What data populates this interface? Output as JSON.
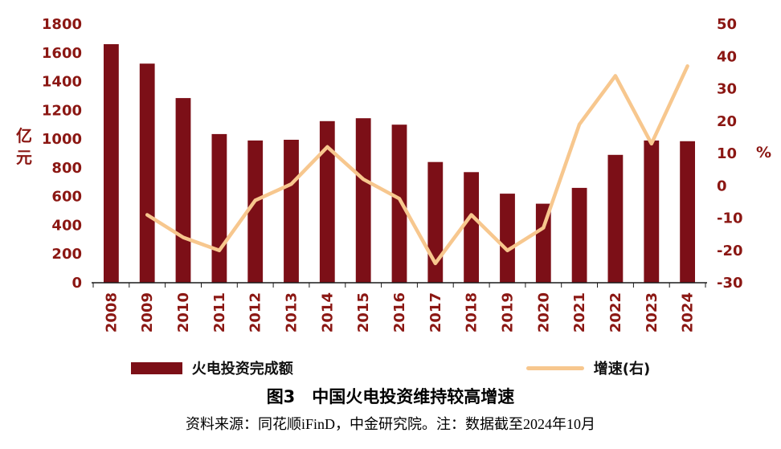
{
  "title": "图3　中国火电投资维持较高增速",
  "source_note": "资料来源：同花顺iFinD，中金研究院。注：数据截至2024年10月",
  "left_axis_unit_lines": [
    "亿",
    "元"
  ],
  "right_axis_unit": "%",
  "legend": {
    "bars": "火电投资完成额",
    "line": "增速(右)"
  },
  "colors": {
    "bar": "#7c0f17",
    "line": "#f7c78e",
    "axis_text": "#8b1713",
    "axis_line": "#1a1a1a",
    "text": "#111111"
  },
  "chart_data": {
    "type": "bar+line",
    "categories": [
      "2008",
      "2009",
      "2010",
      "2011",
      "2012",
      "2013",
      "2014",
      "2015",
      "2016",
      "2017",
      "2018",
      "2019",
      "2020",
      "2021",
      "2022",
      "2023",
      "2024"
    ],
    "series": [
      {
        "name": "火电投资完成额",
        "type": "bar",
        "axis": "left",
        "values": [
          1660,
          1525,
          1285,
          1035,
          990,
          995,
          1125,
          1145,
          1100,
          840,
          770,
          620,
          550,
          660,
          890,
          990,
          985
        ]
      },
      {
        "name": "增速(右)",
        "type": "line",
        "axis": "right",
        "values": [
          null,
          -9,
          -16,
          -20,
          -4.5,
          0.5,
          12,
          2,
          -4,
          -24,
          -9,
          -20,
          -13,
          19,
          34,
          13,
          37
        ]
      }
    ],
    "left_axis": {
      "min": 0,
      "max": 1800,
      "step": 200,
      "label": "亿元"
    },
    "right_axis": {
      "min": -30,
      "max": 50,
      "step": 10,
      "label": "%"
    },
    "grid": false,
    "legend_position": "bottom"
  }
}
